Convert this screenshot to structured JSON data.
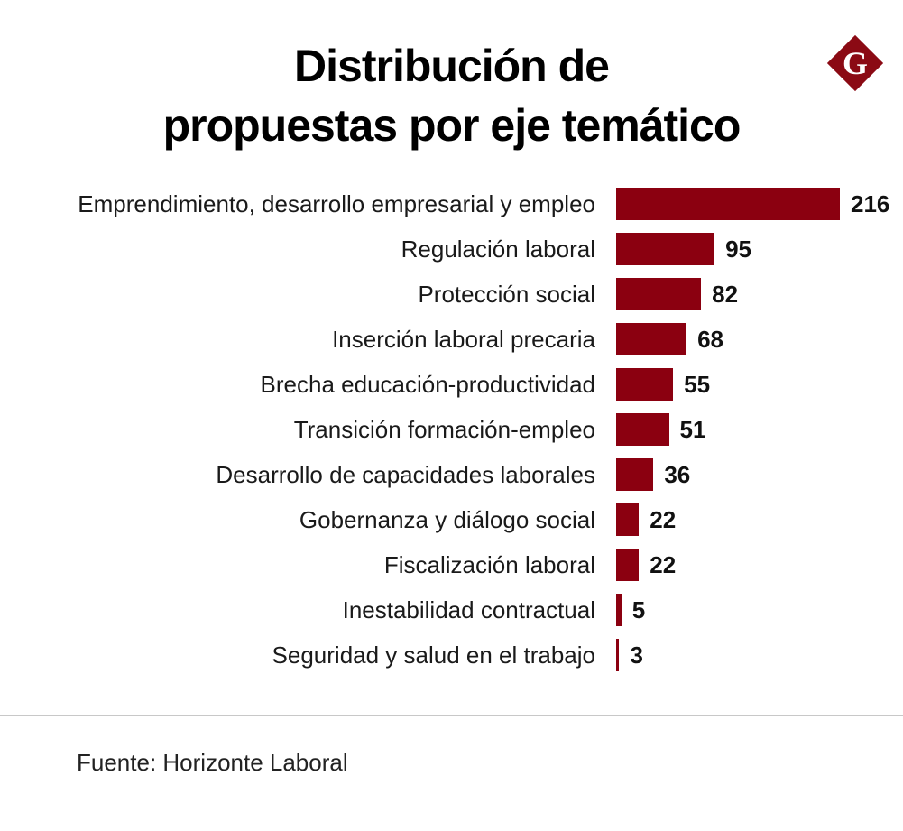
{
  "title_lines": [
    "Distribución de",
    "propuestas por eje temático"
  ],
  "logo_text": "G",
  "colors": {
    "bar": "#8b0010",
    "logo": "#8b0a14"
  },
  "source": "Fuente: Horizonte Laboral",
  "chart_data": {
    "type": "bar",
    "orientation": "horizontal",
    "title": "Distribución de propuestas por eje temático",
    "categories": [
      "Emprendimiento, desarrollo empresarial y empleo",
      "Regulación laboral",
      "Protección social",
      "Inserción laboral precaria",
      "Brecha educación-productividad",
      "Transición formación-empleo",
      "Desarrollo de capacidades laborales",
      "Gobernanza y diálogo social",
      "Fiscalización laboral",
      "Inestabilidad contractual",
      "Seguridad y salud en el trabajo"
    ],
    "values": [
      216,
      95,
      82,
      68,
      55,
      51,
      36,
      22,
      22,
      5,
      3
    ],
    "data_labels": true,
    "grid": false,
    "xlabel": "",
    "ylabel": ""
  }
}
